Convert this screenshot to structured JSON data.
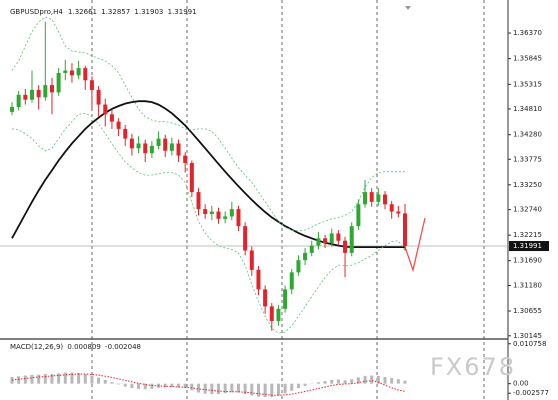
{
  "chart_data": [
    {
      "type": "candlestick",
      "symbol": "GBPUSDpro,H4",
      "open": [
        1.3475,
        1.3485,
        1.351,
        1.35,
        1.352,
        1.3505,
        1.353,
        1.3515,
        1.3555,
        1.356,
        1.355,
        1.3565,
        1.354,
        1.352,
        1.349,
        1.347,
        1.3455,
        1.344,
        1.342,
        1.34,
        1.341,
        1.339,
        1.3405,
        1.342,
        1.3395,
        1.341,
        1.3385,
        1.337,
        1.331,
        1.3275,
        1.3265,
        1.327,
        1.3255,
        1.326,
        1.3275,
        1.324,
        1.319,
        1.315,
        1.311,
        1.3075,
        1.3045,
        1.307,
        1.311,
        1.3145,
        1.317,
        1.3185,
        1.32,
        1.3215,
        1.3205,
        1.3225,
        1.321,
        1.3185,
        1.324,
        1.3285,
        1.331,
        1.329,
        1.3305,
        1.3285,
        1.327,
        1.32661
      ],
      "high": [
        1.3495,
        1.3518,
        1.3522,
        1.356,
        1.353,
        1.366,
        1.3545,
        1.3565,
        1.3582,
        1.3575,
        1.358,
        1.357,
        1.3548,
        1.3528,
        1.3502,
        1.348,
        1.3462,
        1.3448,
        1.343,
        1.3425,
        1.3418,
        1.3415,
        1.3435,
        1.3428,
        1.3422,
        1.3418,
        1.3392,
        1.3375,
        1.3318,
        1.3285,
        1.3282,
        1.3278,
        1.327,
        1.329,
        1.3282,
        1.3248,
        1.3198,
        1.3158,
        1.3118,
        1.3082,
        1.3078,
        1.3118,
        1.3152,
        1.318,
        1.3195,
        1.321,
        1.3228,
        1.3222,
        1.3235,
        1.3232,
        1.3218,
        1.3248,
        1.3295,
        1.3335,
        1.3318,
        1.3318,
        1.3312,
        1.3292,
        1.3282,
        1.32857
      ],
      "low": [
        1.3468,
        1.3478,
        1.349,
        1.3494,
        1.348,
        1.3498,
        1.347,
        1.3508,
        1.354,
        1.3535,
        1.3542,
        1.352,
        1.348,
        1.3465,
        1.3445,
        1.344,
        1.3425,
        1.3405,
        1.3385,
        1.339,
        1.3372,
        1.338,
        1.3398,
        1.3382,
        1.3385,
        1.3372,
        1.335,
        1.33,
        1.3262,
        1.3255,
        1.3252,
        1.3245,
        1.3246,
        1.3252,
        1.323,
        1.318,
        1.3138,
        1.3098,
        1.306,
        1.3025,
        1.3035,
        1.3062,
        1.31,
        1.3138,
        1.316,
        1.3178,
        1.3192,
        1.3195,
        1.3198,
        1.32,
        1.3135,
        1.3178,
        1.3232,
        1.3278,
        1.328,
        1.3282,
        1.3275,
        1.3255,
        1.3258,
        1.31903
      ],
      "close": [
        1.3485,
        1.351,
        1.35,
        1.352,
        1.3505,
        1.353,
        1.3515,
        1.3555,
        1.356,
        1.355,
        1.3565,
        1.354,
        1.352,
        1.349,
        1.347,
        1.3455,
        1.344,
        1.342,
        1.34,
        1.341,
        1.339,
        1.3405,
        1.342,
        1.3395,
        1.341,
        1.3385,
        1.337,
        1.331,
        1.3275,
        1.3265,
        1.327,
        1.3255,
        1.326,
        1.3275,
        1.324,
        1.319,
        1.315,
        1.311,
        1.3075,
        1.3045,
        1.307,
        1.311,
        1.3145,
        1.317,
        1.3185,
        1.32,
        1.3215,
        1.3205,
        1.3225,
        1.321,
        1.3185,
        1.324,
        1.3285,
        1.331,
        1.329,
        1.3305,
        1.3285,
        1.327,
        1.32661,
        1.31991
      ],
      "up_color": "#2fa832",
      "down_color": "#e3232b",
      "series": [
        {
          "color": "#111111",
          "style": "solid",
          "values": [
            1.3215,
            1.324,
            1.3265,
            1.329,
            1.3313,
            1.3335,
            1.3355,
            1.3375,
            1.3393,
            1.341,
            1.3425,
            1.344,
            1.3452,
            1.3463,
            1.3473,
            1.3481,
            1.3487,
            1.3492,
            1.3495,
            1.3497,
            1.3497,
            1.3495,
            1.349,
            1.3482,
            1.3472,
            1.346,
            1.3447,
            1.3432,
            1.3416,
            1.34,
            1.3384,
            1.3368,
            1.3352,
            1.3337,
            1.3322,
            1.3308,
            1.3294,
            1.3281,
            1.3269,
            1.3258,
            1.3249,
            1.324,
            1.3233,
            1.3226,
            1.322,
            1.3215,
            1.321,
            1.3206,
            1.3203,
            1.32,
            1.3198,
            1.3197,
            1.3197,
            1.3197,
            1.3197,
            1.3197,
            1.3197,
            1.3197,
            1.3197,
            1.3197
          ]
        },
        {
          "color": "#5cbf7a",
          "style": "dashed",
          "values": [
            1.356,
            1.358,
            1.361,
            1.364,
            1.366,
            1.367,
            1.3665,
            1.364,
            1.361,
            1.36,
            1.3598,
            1.3596,
            1.359,
            1.3585,
            1.358,
            1.357,
            1.3555,
            1.353,
            1.3505,
            1.348,
            1.3465,
            1.3458,
            1.3455,
            1.3455,
            1.3452,
            1.3448,
            1.344,
            1.3438,
            1.344,
            1.344,
            1.3435,
            1.342,
            1.34,
            1.338,
            1.336,
            1.3345,
            1.333,
            1.331,
            1.329,
            1.327,
            1.325,
            1.3238,
            1.3232,
            1.323,
            1.3232,
            1.3238,
            1.3245,
            1.325,
            1.3255,
            1.3258,
            1.3262,
            1.327,
            1.329,
            1.332,
            1.334,
            1.335,
            1.3352,
            1.3352,
            1.3352,
            1.3352
          ]
        },
        {
          "color": "#5cbf7a",
          "style": "dashed",
          "values": [
            1.344,
            1.3438,
            1.343,
            1.342,
            1.3405,
            1.3395,
            1.34,
            1.342,
            1.344,
            1.3455,
            1.347,
            1.3472,
            1.3465,
            1.345,
            1.343,
            1.341,
            1.339,
            1.3372,
            1.336,
            1.335,
            1.3345,
            1.3345,
            1.3348,
            1.335,
            1.335,
            1.3345,
            1.333,
            1.329,
            1.325,
            1.3225,
            1.321,
            1.32,
            1.3195,
            1.3192,
            1.3185,
            1.316,
            1.312,
            1.3085,
            1.3055,
            1.303,
            1.302,
            1.3022,
            1.3035,
            1.3055,
            1.3075,
            1.3095,
            1.3115,
            1.3135,
            1.315,
            1.316,
            1.3158,
            1.316,
            1.3165,
            1.3172,
            1.318,
            1.319,
            1.32,
            1.3208,
            1.321,
            1.319
          ]
        }
      ],
      "ylim": [
        1.301,
        1.3705
      ],
      "yticks": [
        {
          "value": 1.3637,
          "label": "1.36370"
        },
        1.35845,
        1.35315,
        {
          "value": 1.3481,
          "label": "1.34810"
        },
        {
          "value": 1.3428,
          "label": "1.34280"
        },
        1.33775,
        {
          "value": 1.3325,
          "label": "1.33250"
        },
        {
          "value": 1.3274,
          "label": "1.32740"
        },
        1.32215,
        {
          "value": 1.3169,
          "label": "1.31690"
        },
        {
          "value": 1.3118,
          "label": "1.31180"
        },
        1.30655,
        1.30145
      ]
    },
    {
      "type": "macd",
      "title": "MACD(12,26,9)",
      "histogram": [
        0.0018,
        0.002,
        0.0022,
        0.0024,
        0.0024,
        0.0026,
        0.0026,
        0.0028,
        0.003,
        0.003,
        0.0029,
        0.0026,
        0.0022,
        0.0016,
        0.001,
        0.0004,
        -0.0002,
        -0.0008,
        -0.0012,
        -0.0014,
        -0.0015,
        -0.0014,
        -0.0011,
        -0.001,
        -0.0009,
        -0.001,
        -0.0012,
        -0.0018,
        -0.0024,
        -0.0027,
        -0.0028,
        -0.0028,
        -0.0026,
        -0.0023,
        -0.0024,
        -0.0028,
        -0.0032,
        -0.0035,
        -0.0036,
        -0.0036,
        -0.0032,
        -0.0026,
        -0.0019,
        -0.0012,
        -0.0006,
        -0.0001,
        0.0004,
        0.0007,
        0.001,
        0.0011,
        0.0009,
        0.0012,
        0.0017,
        0.0021,
        0.0022,
        0.0021,
        0.0018,
        0.0015,
        0.0012,
        0.000809
      ],
      "signal": [
        0.001,
        0.0012,
        0.0014,
        0.0016,
        0.0018,
        0.0019,
        0.0021,
        0.0022,
        0.0024,
        0.0025,
        0.0026,
        0.0026,
        0.0025,
        0.0023,
        0.002,
        0.0017,
        0.0013,
        0.0009,
        0.0005,
        0.0001,
        -0.0002,
        -0.0005,
        -0.0006,
        -0.0007,
        -0.0008,
        -0.0009,
        -0.001,
        -0.0011,
        -0.0014,
        -0.0016,
        -0.0018,
        -0.002,
        -0.0021,
        -0.0022,
        -0.0022,
        -0.0023,
        -0.0025,
        -0.0027,
        -0.0029,
        -0.0031,
        -0.0031,
        -0.003,
        -0.0028,
        -0.0025,
        -0.0021,
        -0.0017,
        -0.0013,
        -0.0009,
        -0.0005,
        -0.0002,
        -0.0001,
        0,
        0.0003,
        0.0006,
        0.0008,
        0.0004,
        -0.0004,
        -0.0011,
        -0.0017,
        -0.002048
      ],
      "histogram_color": "#b8b8b8",
      "signal_color": "#e3232b",
      "ylim": [
        -0.0044,
        0.0115
      ],
      "yticks": [
        0.010758,
        {
          "value": 0,
          "label": "0.00"
        },
        -0.002577
      ]
    }
  ],
  "watermark": "FX678"
}
